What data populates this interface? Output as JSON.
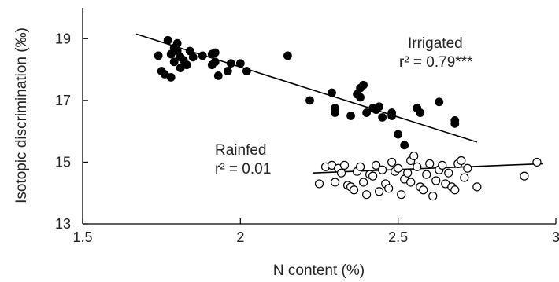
{
  "chart_data": {
    "type": "scatter",
    "xlabel": "N content (%)",
    "ylabel": "Isotopic discrimination (‰)",
    "xlim": [
      1.5,
      3.0
    ],
    "ylim": [
      13,
      20.0
    ],
    "xticks": [
      1.5,
      2.0,
      2.5,
      3.0
    ],
    "xtick_labels": [
      "1.5",
      "2",
      "2.5",
      "3"
    ],
    "yticks": [
      13,
      15,
      17,
      19
    ],
    "ytick_labels": [
      "13",
      "15",
      "17",
      "19"
    ],
    "grid": false,
    "series": [
      {
        "name": "Irrigated",
        "marker": "filled-circle",
        "color": "#000000",
        "points": [
          [
            1.74,
            18.45
          ],
          [
            1.75,
            17.95
          ],
          [
            1.76,
            17.85
          ],
          [
            1.77,
            18.95
          ],
          [
            1.78,
            18.5
          ],
          [
            1.78,
            17.75
          ],
          [
            1.79,
            18.7
          ],
          [
            1.79,
            18.25
          ],
          [
            1.8,
            18.85
          ],
          [
            1.8,
            18.6
          ],
          [
            1.81,
            18.05
          ],
          [
            1.81,
            18.4
          ],
          [
            1.82,
            18.3
          ],
          [
            1.83,
            18.15
          ],
          [
            1.84,
            18.6
          ],
          [
            1.85,
            18.4
          ],
          [
            1.88,
            18.45
          ],
          [
            1.91,
            18.5
          ],
          [
            1.91,
            18.15
          ],
          [
            1.92,
            18.55
          ],
          [
            1.92,
            18.25
          ],
          [
            1.93,
            17.8
          ],
          [
            1.96,
            17.95
          ],
          [
            1.97,
            18.2
          ],
          [
            2.0,
            18.2
          ],
          [
            2.02,
            17.95
          ],
          [
            2.15,
            18.45
          ],
          [
            2.22,
            17.0
          ],
          [
            2.29,
            17.25
          ],
          [
            2.3,
            16.6
          ],
          [
            2.3,
            16.75
          ],
          [
            2.35,
            16.5
          ],
          [
            2.37,
            17.2
          ],
          [
            2.38,
            17.1
          ],
          [
            2.38,
            17.4
          ],
          [
            2.39,
            17.5
          ],
          [
            2.4,
            16.6
          ],
          [
            2.42,
            16.75
          ],
          [
            2.43,
            16.7
          ],
          [
            2.44,
            16.8
          ],
          [
            2.45,
            16.45
          ],
          [
            2.48,
            16.6
          ],
          [
            2.48,
            16.5
          ],
          [
            2.5,
            15.9
          ],
          [
            2.52,
            15.55
          ],
          [
            2.56,
            16.75
          ],
          [
            2.57,
            16.6
          ],
          [
            2.63,
            16.95
          ],
          [
            2.68,
            16.35
          ],
          [
            2.68,
            16.25
          ]
        ],
        "fit": {
          "x": [
            1.67,
            2.75
          ],
          "y": [
            19.15,
            15.65
          ]
        },
        "label": "Irrigated",
        "annotation": "r² = 0.79***"
      },
      {
        "name": "Rainfed",
        "marker": "open-circle",
        "color": "#000000",
        "points": [
          [
            2.25,
            14.3
          ],
          [
            2.27,
            14.85
          ],
          [
            2.29,
            14.9
          ],
          [
            2.3,
            14.35
          ],
          [
            2.31,
            14.8
          ],
          [
            2.32,
            14.65
          ],
          [
            2.33,
            14.9
          ],
          [
            2.34,
            14.25
          ],
          [
            2.35,
            14.2
          ],
          [
            2.36,
            14.1
          ],
          [
            2.37,
            14.7
          ],
          [
            2.38,
            14.85
          ],
          [
            2.39,
            14.35
          ],
          [
            2.4,
            13.95
          ],
          [
            2.41,
            14.6
          ],
          [
            2.42,
            14.55
          ],
          [
            2.43,
            14.9
          ],
          [
            2.44,
            14.05
          ],
          [
            2.45,
            14.75
          ],
          [
            2.46,
            14.3
          ],
          [
            2.47,
            14.15
          ],
          [
            2.48,
            15.0
          ],
          [
            2.49,
            14.7
          ],
          [
            2.5,
            14.8
          ],
          [
            2.51,
            13.95
          ],
          [
            2.52,
            14.45
          ],
          [
            2.53,
            14.65
          ],
          [
            2.54,
            15.05
          ],
          [
            2.54,
            14.35
          ],
          [
            2.55,
            15.2
          ],
          [
            2.56,
            14.85
          ],
          [
            2.57,
            14.2
          ],
          [
            2.58,
            14.1
          ],
          [
            2.59,
            14.6
          ],
          [
            2.6,
            14.95
          ],
          [
            2.61,
            13.9
          ],
          [
            2.62,
            14.4
          ],
          [
            2.63,
            14.75
          ],
          [
            2.64,
            14.9
          ],
          [
            2.65,
            14.3
          ],
          [
            2.66,
            14.65
          ],
          [
            2.67,
            14.2
          ],
          [
            2.68,
            14.1
          ],
          [
            2.69,
            14.95
          ],
          [
            2.7,
            15.05
          ],
          [
            2.71,
            14.5
          ],
          [
            2.72,
            14.8
          ],
          [
            2.75,
            14.2
          ],
          [
            2.9,
            14.55
          ],
          [
            2.94,
            15.0
          ]
        ],
        "fit": {
          "x": [
            2.23,
            2.96
          ],
          "y": [
            14.65,
            14.95
          ]
        },
        "label": "Rainfed",
        "annotation": "r² = 0.01"
      }
    ]
  }
}
